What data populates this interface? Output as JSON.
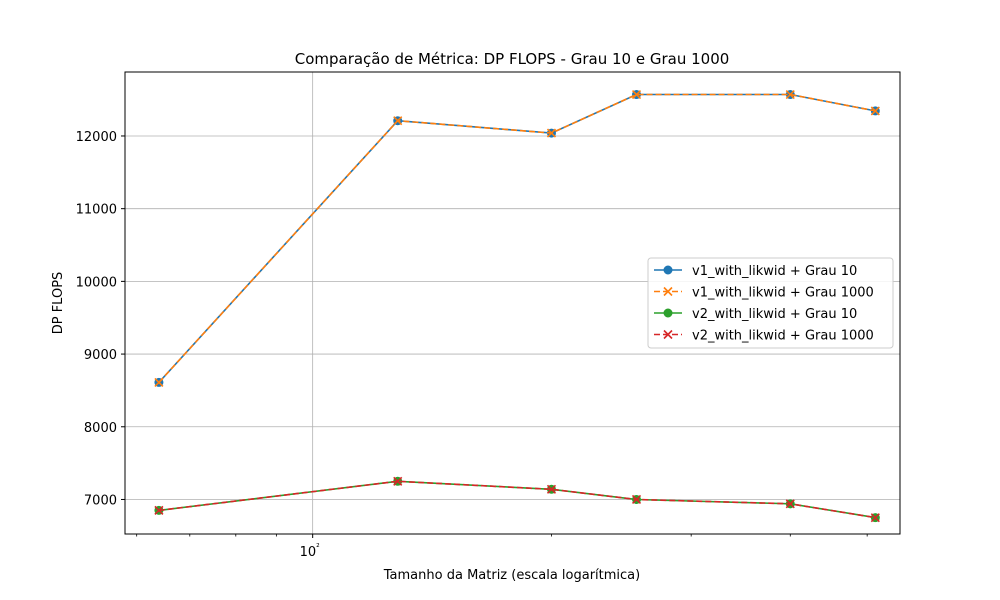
{
  "chart_data": {
    "type": "line",
    "title": "Comparação de Métrica: DP FLOPS - Grau 10 e Grau 1000",
    "xlabel": "Tamanho da Matriz (escala logarítmica)",
    "ylabel": "DP FLOPS",
    "x_scale": "log",
    "xlim": [
      58,
      550
    ],
    "ylim": [
      6525,
      12880
    ],
    "x_major_ticks": [
      100
    ],
    "x_major_tick_labels": [
      "10²"
    ],
    "y_ticks": [
      7000,
      8000,
      9000,
      10000,
      11000,
      12000
    ],
    "y_tick_labels": [
      "7000",
      "8000",
      "9000",
      "10000",
      "11000",
      "12000"
    ],
    "grid": true,
    "legend_position": "center-right",
    "x": [
      64,
      128,
      200,
      256,
      400,
      512
    ],
    "series": [
      {
        "name": "v1_with_likwid + Grau 10",
        "color": "#1f77b4",
        "linestyle": "solid",
        "marker": "circle",
        "values": [
          8610,
          12210,
          12040,
          12570,
          12570,
          12345
        ]
      },
      {
        "name": "v1_with_likwid + Grau 1000",
        "color": "#ff7f0e",
        "linestyle": "dashed",
        "marker": "x",
        "values": [
          8610,
          12210,
          12040,
          12570,
          12570,
          12345
        ]
      },
      {
        "name": "v2_with_likwid + Grau 10",
        "color": "#2ca02c",
        "linestyle": "solid",
        "marker": "circle",
        "values": [
          6850,
          7250,
          7140,
          7000,
          6940,
          6750
        ]
      },
      {
        "name": "v2_with_likwid + Grau 1000",
        "color": "#d62728",
        "linestyle": "dashed",
        "marker": "x",
        "values": [
          6850,
          7250,
          7140,
          7000,
          6940,
          6750
        ]
      }
    ]
  }
}
